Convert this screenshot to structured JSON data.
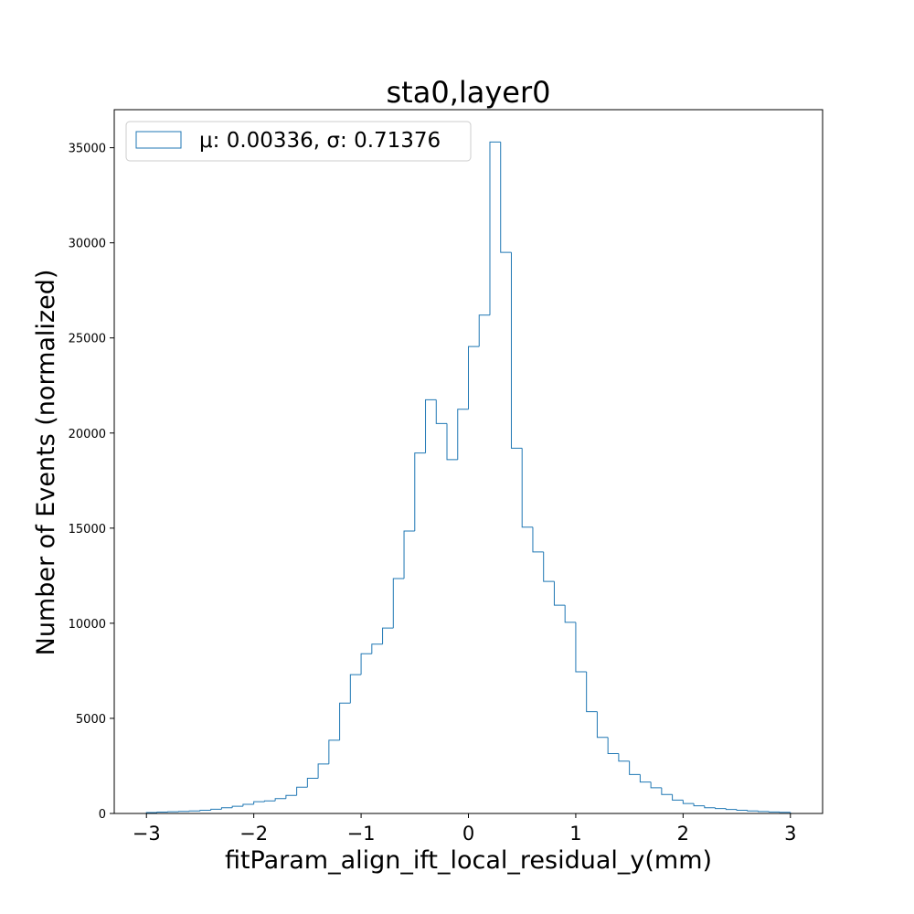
{
  "chart_data": {
    "type": "histogram",
    "title": "sta0,layer0",
    "xlabel": "fitParam_align_ift_local_residual_y(mm)",
    "ylabel": "Number of Events (normalized)",
    "xlim": [
      -3.3,
      3.3
    ],
    "ylim": [
      0,
      37000
    ],
    "xticks": [
      -3,
      -2,
      -1,
      0,
      1,
      2,
      3
    ],
    "xtick_labels": [
      "−3",
      "−2",
      "−1",
      "0",
      "1",
      "2",
      "3"
    ],
    "yticks": [
      0,
      5000,
      10000,
      15000,
      20000,
      25000,
      30000,
      35000
    ],
    "ytick_labels": [
      "0",
      "5000",
      "10000",
      "15000",
      "20000",
      "25000",
      "30000",
      "35000"
    ],
    "legend": {
      "location": "upper-left",
      "entries": [
        "μ: 0.00336, σ: 0.71376"
      ]
    },
    "histtype": "step",
    "color": "#1f77b4",
    "bin_range": [
      -3,
      3
    ],
    "bin_count": 60,
    "counts": [
      50,
      70,
      90,
      110,
      130,
      170,
      220,
      300,
      380,
      480,
      620,
      660,
      780,
      950,
      1380,
      1850,
      2600,
      3850,
      5800,
      7300,
      8400,
      8900,
      9750,
      12350,
      14850,
      18950,
      21750,
      20500,
      18600,
      21250,
      24550,
      26200,
      35300,
      29500,
      19200,
      15050,
      13750,
      12200,
      10950,
      10050,
      7450,
      5350,
      4000,
      3150,
      2750,
      2050,
      1650,
      1350,
      1000,
      700,
      520,
      400,
      300,
      260,
      210,
      170,
      130,
      100,
      80,
      60
    ]
  }
}
